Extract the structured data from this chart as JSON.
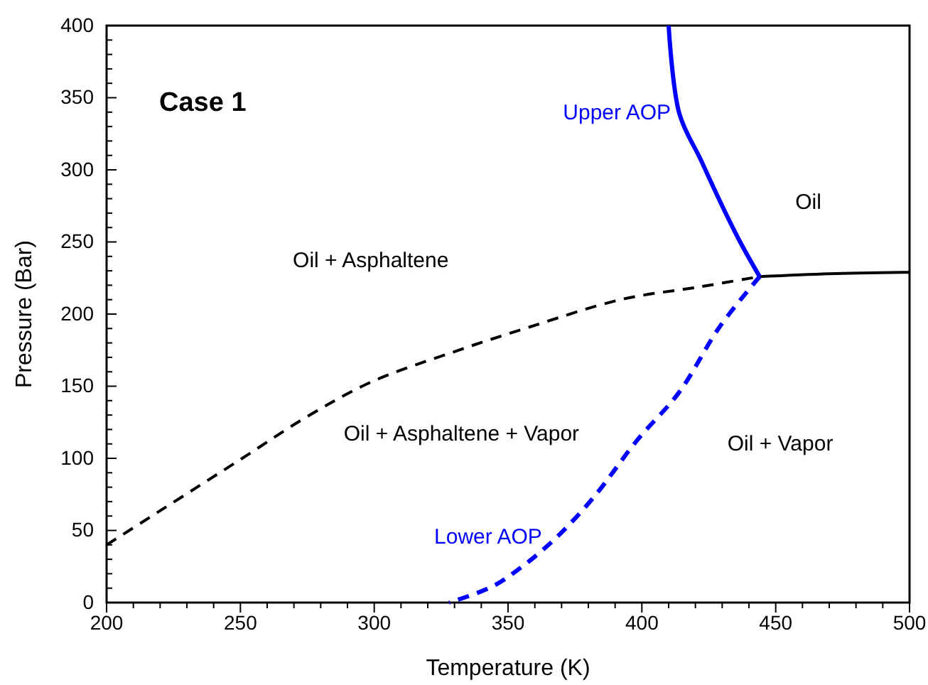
{
  "chart_data": {
    "type": "line",
    "title": "Case 1",
    "xlabel": "Temperature (K)",
    "ylabel": "Pressure (Bar)",
    "xlim": [
      200,
      500
    ],
    "ylim": [
      0,
      400
    ],
    "xticks": [
      200,
      {
        "value": 210,
        "label": null
      },
      {
        "value": 220,
        "label": null
      },
      {
        "value": 230,
        "label": null
      },
      {
        "value": 240,
        "label": null
      },
      250,
      {
        "value": 260,
        "label": null
      },
      {
        "value": 270,
        "label": null
      },
      {
        "value": 280,
        "label": null
      },
      {
        "value": 290,
        "label": null
      },
      300,
      {
        "value": 310,
        "label": null
      },
      {
        "value": 320,
        "label": null
      },
      {
        "value": 330,
        "label": null
      },
      {
        "value": 340,
        "label": null
      },
      350,
      {
        "value": 360,
        "label": null
      },
      {
        "value": 370,
        "label": null
      },
      {
        "value": 380,
        "label": null
      },
      {
        "value": 390,
        "label": null
      },
      400,
      {
        "value": 410,
        "label": null
      },
      {
        "value": 420,
        "label": null
      },
      {
        "value": 430,
        "label": null
      },
      {
        "value": 440,
        "label": null
      },
      450,
      {
        "value": 460,
        "label": null
      },
      {
        "value": 470,
        "label": null
      },
      {
        "value": 480,
        "label": null
      },
      {
        "value": 490,
        "label": null
      },
      500
    ],
    "yticks": [
      0,
      {
        "value": 10,
        "label": null
      },
      {
        "value": 20,
        "label": null
      },
      {
        "value": 30,
        "label": null
      },
      {
        "value": 40,
        "label": null
      },
      50,
      {
        "value": 60,
        "label": null
      },
      {
        "value": 70,
        "label": null
      },
      {
        "value": 80,
        "label": null
      },
      {
        "value": 90,
        "label": null
      },
      100,
      {
        "value": 110,
        "label": null
      },
      {
        "value": 120,
        "label": null
      },
      {
        "value": 130,
        "label": null
      },
      {
        "value": 140,
        "label": null
      },
      150,
      {
        "value": 160,
        "label": null
      },
      {
        "value": 170,
        "label": null
      },
      {
        "value": 180,
        "label": null
      },
      {
        "value": 190,
        "label": null
      },
      200,
      {
        "value": 210,
        "label": null
      },
      {
        "value": 220,
        "label": null
      },
      {
        "value": 230,
        "label": null
      },
      {
        "value": 240,
        "label": null
      },
      250,
      {
        "value": 260,
        "label": null
      },
      {
        "value": 270,
        "label": null
      },
      {
        "value": 280,
        "label": null
      },
      {
        "value": 290,
        "label": null
      },
      300,
      {
        "value": 310,
        "label": null
      },
      {
        "value": 320,
        "label": null
      },
      {
        "value": 330,
        "label": null
      },
      {
        "value": 340,
        "label": null
      },
      350,
      {
        "value": 360,
        "label": null
      },
      {
        "value": 370,
        "label": null
      },
      {
        "value": 380,
        "label": null
      },
      {
        "value": 390,
        "label": null
      },
      400
    ],
    "grid": false,
    "marker": "none",
    "series": [
      {
        "color": "#000000",
        "line_style": "dashed",
        "x": [
          200,
          249,
          275,
          299,
          330,
          358,
          392,
          422,
          444
        ],
        "values": [
          40,
          98,
          129,
          153,
          174,
          191,
          210,
          219,
          226
        ]
      },
      {
        "color": "#000000",
        "line_style": "solid",
        "x": [
          444,
          470,
          500
        ],
        "values": [
          226,
          228,
          229
        ]
      },
      {
        "name": "Upper AOP",
        "color": "#0000ff",
        "line_style": "solid",
        "x": [
          410,
          414,
          422,
          430,
          437,
          444
        ],
        "values": [
          400,
          339,
          307,
          275,
          249,
          226
        ]
      },
      {
        "name": "Lower AOP",
        "color": "#0000ff",
        "line_style": "dashed",
        "x": [
          444,
          429,
          414,
          398,
          382,
          368,
          356,
          344,
          328
        ],
        "values": [
          226,
          191,
          146,
          112,
          73,
          45,
          26,
          11,
          0
        ]
      }
    ],
    "annotations": [
      "Oil + Asphaltene",
      "Oil + Asphaltene + Vapor",
      "Oil + Vapor",
      "Oil"
    ]
  }
}
